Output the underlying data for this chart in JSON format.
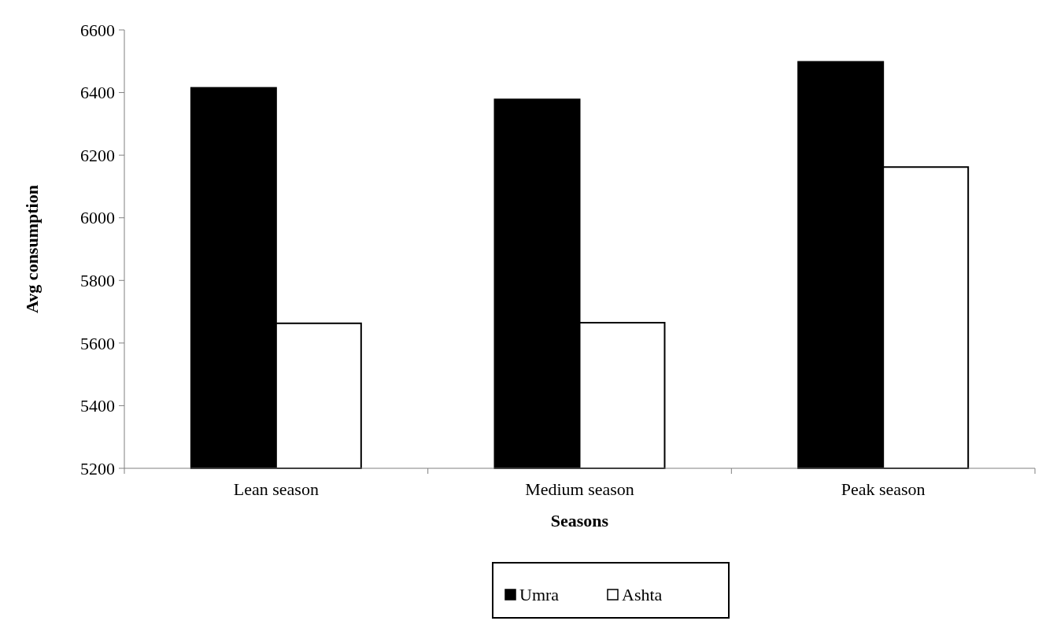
{
  "chart_data": {
    "type": "bar",
    "xlabel": "Seasons",
    "ylabel": "Avg consumption",
    "categories": [
      "Lean season",
      "Medium season",
      "Peak season"
    ],
    "series": [
      {
        "name": "Umra",
        "color": "#000000",
        "values": [
          6415,
          6378,
          6498
        ]
      },
      {
        "name": "Ashta",
        "color": "#ffffff",
        "values": [
          5663,
          5665,
          6162
        ]
      }
    ],
    "ylim": [
      5200,
      6600
    ],
    "yticks": [
      5200,
      5400,
      5600,
      5800,
      6000,
      6200,
      6400,
      6600
    ],
    "grid": false,
    "legend": "bottom"
  }
}
